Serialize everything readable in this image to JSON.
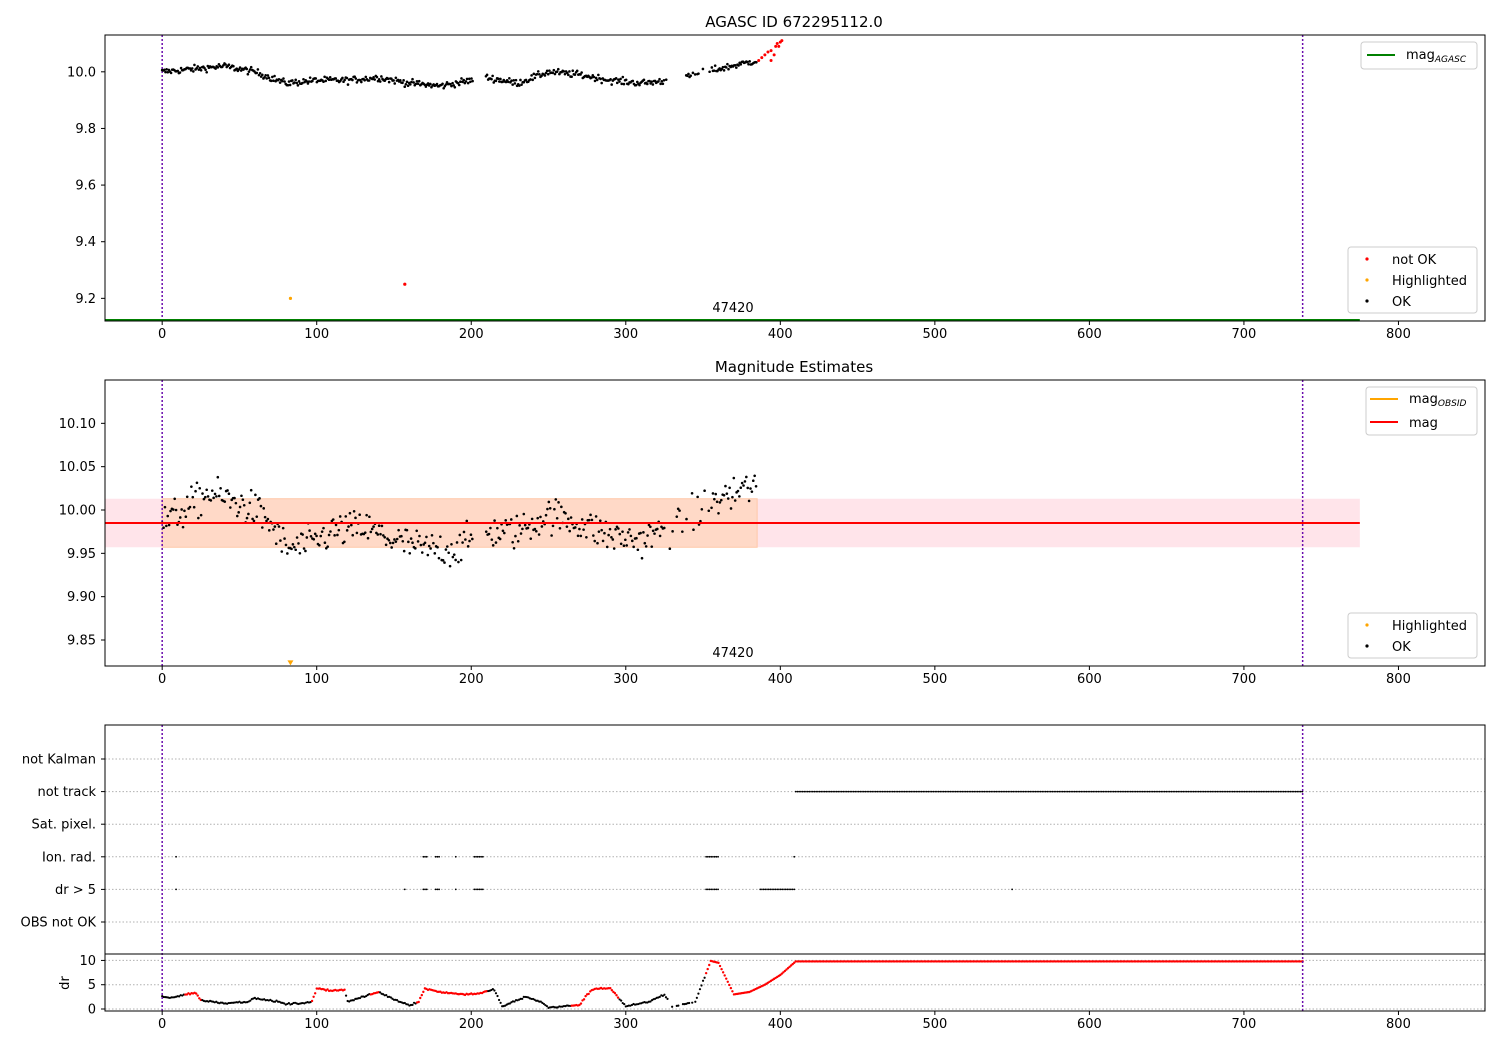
{
  "chart_data": [
    {
      "type": "scatter",
      "title": "AGASC ID 672295112.0",
      "xlim": [
        -37,
        856
      ],
      "ylim": [
        9.12,
        10.13
      ],
      "xticks": [
        0,
        100,
        200,
        300,
        400,
        500,
        600,
        700,
        800
      ],
      "yticks": [
        9.2,
        9.4,
        9.6,
        9.8,
        10.0
      ],
      "ytick_labels": [
        "9.2",
        "9.4",
        "9.6",
        "9.8",
        "10.0"
      ],
      "vlines": [
        0,
        738
      ],
      "obsid_label": {
        "text": "47420",
        "x": 369
      },
      "mag_agasc": {
        "value": 9.12,
        "x_range": [
          -37,
          775
        ],
        "color": "#008000"
      },
      "legend_top": {
        "placement": "upper right",
        "entries": [
          {
            "label": "mag",
            "sub": "AGASC",
            "color": "#008000"
          }
        ]
      },
      "legend_bottom": {
        "placement": "lower right",
        "entries": [
          {
            "label": "not OK",
            "color": "#ff0000"
          },
          {
            "label": "Highlighted",
            "color": "#ffa500"
          },
          {
            "label": "OK",
            "color": "#000000"
          }
        ]
      },
      "ok_trend": [
        [
          0,
          10.0
        ],
        [
          20,
          10.01
        ],
        [
          40,
          10.02
        ],
        [
          60,
          10.0
        ],
        [
          80,
          9.96
        ],
        [
          100,
          9.97
        ],
        [
          120,
          9.97
        ],
        [
          140,
          9.98
        ],
        [
          160,
          9.96
        ],
        [
          180,
          9.95
        ],
        [
          200,
          9.97
        ],
        [
          210,
          9.98
        ],
        [
          230,
          9.96
        ],
        [
          250,
          10.0
        ],
        [
          270,
          9.99
        ],
        [
          290,
          9.97
        ],
        [
          310,
          9.96
        ],
        [
          330,
          9.97
        ],
        [
          350,
          10.0
        ],
        [
          360,
          10.01
        ],
        [
          385,
          10.04
        ]
      ],
      "not_ok_points": [
        [
          386,
          10.04
        ],
        [
          388,
          10.05
        ],
        [
          390,
          10.06
        ],
        [
          392,
          10.07
        ],
        [
          394,
          10.075
        ],
        [
          396,
          10.06
        ],
        [
          397,
          10.09
        ],
        [
          398,
          10.1
        ],
        [
          399,
          10.09
        ],
        [
          400,
          10.105
        ],
        [
          401,
          10.11
        ],
        [
          394,
          10.04
        ]
      ],
      "special_points": [
        {
          "x": 83,
          "y": 9.2,
          "color": "#ffa500"
        },
        {
          "x": 157,
          "y": 9.25,
          "color": "#ff0000"
        }
      ]
    },
    {
      "type": "scatter",
      "title": "Magnitude Estimates",
      "xlim": [
        -37,
        856
      ],
      "ylim": [
        9.82,
        10.15
      ],
      "xticks": [
        0,
        100,
        200,
        300,
        400,
        500,
        600,
        700,
        800
      ],
      "yticks": [
        9.85,
        9.9,
        9.95,
        10.0,
        10.05,
        10.1
      ],
      "ytick_labels": [
        "9.85",
        "9.90",
        "9.95",
        "10.00",
        "10.05",
        "10.10"
      ],
      "vlines": [
        0,
        738
      ],
      "obsid_label": {
        "text": "47420",
        "x": 369
      },
      "mag_line": {
        "value": 9.985,
        "color": "#ff0000"
      },
      "mag_obsid_line": {
        "value": 9.985,
        "x_range": [
          0,
          385
        ],
        "color": "#ffa500"
      },
      "band_outer": {
        "low": 9.957,
        "high": 10.013,
        "x_range": [
          -37,
          775
        ],
        "color": "#ffe4ea"
      },
      "band_inner": {
        "low": 9.957,
        "high": 10.013,
        "x_range": [
          0,
          385
        ],
        "color": "#ffd9c7"
      },
      "legend_top": {
        "placement": "upper right",
        "entries": [
          {
            "label": "mag",
            "sub": "OBSID",
            "color": "#ffa500"
          },
          {
            "label": "mag",
            "sub": "",
            "color": "#ff0000"
          }
        ]
      },
      "legend_bottom": {
        "placement": "lower right",
        "entries": [
          {
            "label": "Highlighted",
            "color": "#ffa500"
          },
          {
            "label": "OK",
            "color": "#000000"
          }
        ]
      },
      "ok_trend": [
        [
          0,
          9.985
        ],
        [
          15,
          10.0
        ],
        [
          30,
          10.02
        ],
        [
          45,
          10.01
        ],
        [
          60,
          10.0
        ],
        [
          70,
          9.985
        ],
        [
          80,
          9.955
        ],
        [
          95,
          9.96
        ],
        [
          110,
          9.975
        ],
        [
          130,
          9.98
        ],
        [
          150,
          9.965
        ],
        [
          170,
          9.955
        ],
        [
          190,
          9.955
        ],
        [
          210,
          9.975
        ],
        [
          230,
          9.975
        ],
        [
          250,
          9.995
        ],
        [
          270,
          9.985
        ],
        [
          290,
          9.97
        ],
        [
          310,
          9.965
        ],
        [
          330,
          9.98
        ],
        [
          350,
          10.005
        ],
        [
          365,
          10.015
        ],
        [
          385,
          10.03
        ]
      ],
      "special_points": [
        {
          "x": 83,
          "y": 9.823,
          "color": "#ffa500"
        }
      ]
    },
    {
      "type": "scatter",
      "title": "",
      "xlim": [
        -37,
        856
      ],
      "xticks": [
        0,
        100,
        200,
        300,
        400,
        500,
        600,
        700,
        800
      ],
      "vlines": [
        0,
        738
      ],
      "flag_labels": [
        "not Kalman",
        "not track",
        "Sat. pixel.",
        "Ion. rad.",
        "dr > 5",
        "OBS not OK"
      ],
      "flag_runs": [
        {
          "row": 1,
          "runs": [
            [
              410,
              738
            ]
          ]
        },
        {
          "row": 3,
          "runs": [
            [
              9,
              9
            ],
            [
              169,
              172
            ],
            [
              177,
              180
            ],
            [
              190,
              190
            ],
            [
              202,
              208
            ],
            [
              352,
              360
            ],
            [
              409,
              409
            ]
          ]
        },
        {
          "row": 4,
          "runs": [
            [
              9,
              9
            ],
            [
              157,
              157
            ],
            [
              169,
              172
            ],
            [
              177,
              180
            ],
            [
              190,
              190
            ],
            [
              202,
              208
            ],
            [
              352,
              360
            ],
            [
              387,
              409
            ],
            [
              550,
              550
            ]
          ]
        }
      ],
      "dr_ylabel": "dr",
      "dr_ylim": [
        0,
        10.5
      ],
      "dr_yticks": [
        0,
        5,
        10
      ],
      "dr_trend": [
        [
          0,
          2.5
        ],
        [
          5,
          2.3
        ],
        [
          15,
          3.0
        ],
        [
          22,
          3.3
        ],
        [
          25,
          1.8
        ],
        [
          40,
          1.2
        ],
        [
          55,
          1.5
        ],
        [
          60,
          2.2
        ],
        [
          75,
          1.5
        ],
        [
          80,
          1.0
        ],
        [
          90,
          1.2
        ],
        [
          97,
          1.5
        ],
        [
          100,
          4.2
        ],
        [
          110,
          3.8
        ],
        [
          118,
          4.0
        ],
        [
          120,
          1.5
        ],
        [
          135,
          3.0
        ],
        [
          140,
          3.5
        ],
        [
          150,
          2.0
        ],
        [
          160,
          0.8
        ],
        [
          166,
          1.5
        ],
        [
          170,
          4.2
        ],
        [
          180,
          3.5
        ],
        [
          195,
          3.0
        ],
        [
          205,
          3.2
        ],
        [
          215,
          4.0
        ],
        [
          220,
          0.5
        ],
        [
          235,
          2.5
        ],
        [
          245,
          1.5
        ],
        [
          250,
          0.3
        ],
        [
          270,
          0.8
        ],
        [
          275,
          3.0
        ],
        [
          280,
          4.2
        ],
        [
          290,
          4.3
        ],
        [
          300,
          0.5
        ],
        [
          315,
          1.5
        ],
        [
          325,
          3.0
        ],
        [
          330,
          0.5
        ],
        [
          345,
          1.5
        ],
        [
          355,
          9.9
        ],
        [
          360,
          9.5
        ],
        [
          370,
          3.0
        ],
        [
          380,
          3.5
        ],
        [
          390,
          5.0
        ],
        [
          400,
          7.0
        ],
        [
          410,
          9.8
        ],
        [
          738,
          9.8
        ]
      ],
      "dr_red_ranges": [
        [
          15,
          25
        ],
        [
          97,
          118
        ],
        [
          135,
          140
        ],
        [
          165,
          210
        ],
        [
          265,
          295
        ],
        [
          352,
          738
        ]
      ]
    }
  ]
}
